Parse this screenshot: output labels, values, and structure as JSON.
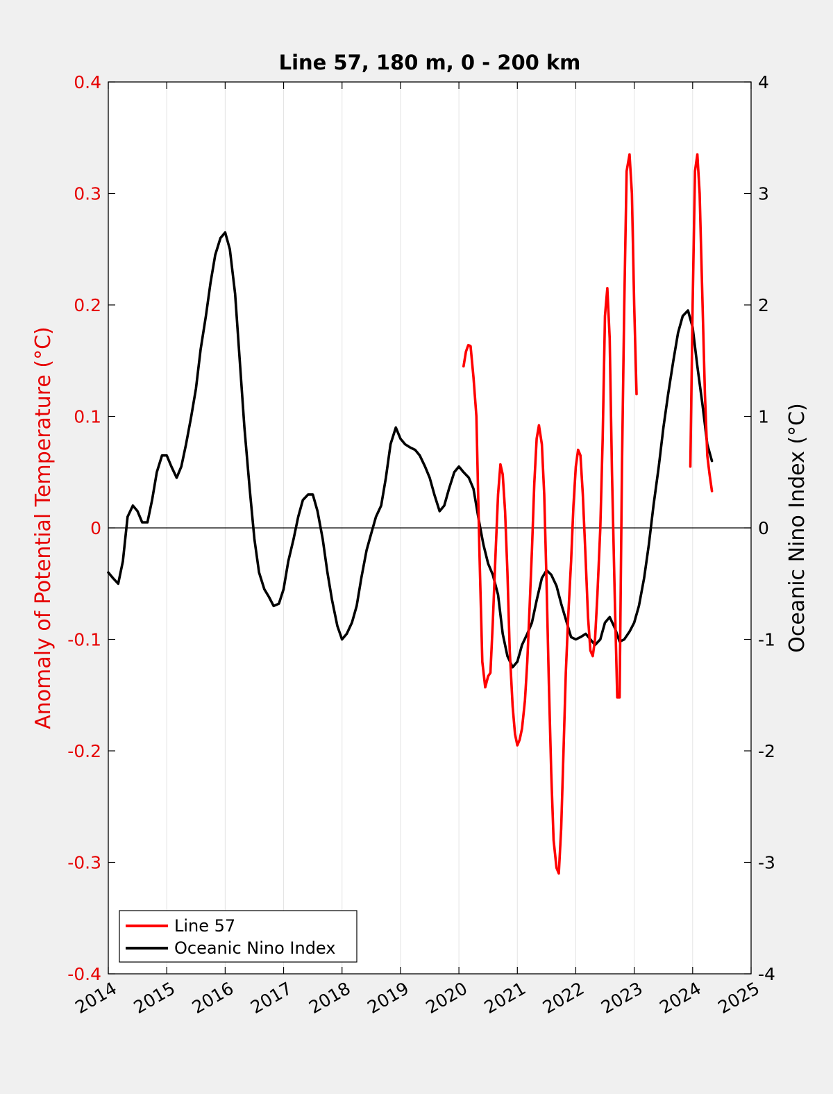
{
  "chart_data": {
    "type": "line",
    "title": "Line 57, 180 m, 0 - 200 km",
    "xlabel": "",
    "ylabel_left": "Anomaly of Potential Temperature (°C)",
    "ylabel_right": "Oceanic Nino Index (°C)",
    "xlim": [
      2014,
      2025
    ],
    "ylim_left": [
      -0.4,
      0.4
    ],
    "ylim_right": [
      -4,
      4
    ],
    "x_ticks": [
      "2014",
      "2015",
      "2016",
      "2017",
      "2018",
      "2019",
      "2020",
      "2021",
      "2022",
      "2023",
      "2024",
      "2025"
    ],
    "y_left_ticks": [
      "-0.4",
      "-0.3",
      "-0.2",
      "-0.1",
      "0",
      "0.1",
      "0.2",
      "0.3",
      "0.4"
    ],
    "y_right_ticks": [
      "-4",
      "-3",
      "-2",
      "-1",
      "0",
      "1",
      "2",
      "3",
      "4"
    ],
    "grid": "vertical",
    "zero_line": true,
    "legend_position": "bottom-left",
    "colors": {
      "left_axis": "#e60000",
      "right_axis": "#000000",
      "background": "#f0f0f0",
      "plot_area": "#ffffff"
    },
    "series": [
      {
        "name": "Line 57",
        "axis": "left",
        "color": "#ff0000",
        "x": [
          2020.08,
          2020.12,
          2020.16,
          2020.2,
          2020.25,
          2020.3,
          2020.35,
          2020.4,
          2020.45,
          2020.5,
          2020.54,
          2020.58,
          2020.63,
          2020.67,
          2020.71,
          2020.75,
          2020.79,
          2020.83,
          2020.87,
          2020.92,
          2020.96,
          2021.0,
          2021.04,
          2021.08,
          2021.13,
          2021.17,
          2021.21,
          2021.25,
          2021.29,
          2021.33,
          2021.37,
          2021.42,
          2021.46,
          2021.5,
          2021.54,
          2021.58,
          2021.62,
          2021.67,
          2021.71,
          2021.75,
          2021.79,
          2021.83,
          2021.87,
          2021.92,
          2021.96,
          2022.0,
          2022.04,
          2022.08,
          2022.12,
          2022.17,
          2022.21,
          2022.25,
          2022.29,
          2022.33,
          2022.37,
          2022.42,
          2022.46,
          2022.5,
          2022.54,
          2022.58,
          2022.62,
          2022.67,
          2022.71,
          2022.75,
          2022.79,
          2022.83,
          2022.87,
          2022.92,
          2022.96,
          2023.0,
          2023.04,
          null,
          2023.96,
          2024.0,
          2024.04,
          2024.08,
          2024.12,
          2024.17,
          2024.21,
          2024.25,
          2024.29,
          2024.33
        ],
        "values": [
          0.145,
          0.158,
          0.164,
          0.163,
          0.135,
          0.1,
          -0.02,
          -0.12,
          -0.143,
          -0.133,
          -0.13,
          -0.085,
          -0.02,
          0.03,
          0.057,
          0.048,
          0.015,
          -0.04,
          -0.11,
          -0.16,
          -0.185,
          -0.195,
          -0.19,
          -0.18,
          -0.155,
          -0.12,
          -0.07,
          -0.02,
          0.04,
          0.08,
          0.092,
          0.075,
          0.03,
          -0.05,
          -0.14,
          -0.22,
          -0.28,
          -0.305,
          -0.31,
          -0.27,
          -0.2,
          -0.13,
          -0.08,
          -0.03,
          0.02,
          0.055,
          0.07,
          0.065,
          0.03,
          -0.03,
          -0.08,
          -0.11,
          -0.115,
          -0.1,
          -0.06,
          0.0,
          0.08,
          0.19,
          0.215,
          0.17,
          0.05,
          -0.07,
          -0.152,
          -0.152,
          0.055,
          0.2,
          0.32,
          0.335,
          0.3,
          0.2,
          0.12,
          null,
          0.055,
          0.2,
          0.32,
          0.335,
          0.3,
          0.2,
          0.12,
          0.065,
          0.048,
          0.033
        ],
        "values_note": ""
      },
      {
        "name": "Oceanic Nino Index",
        "axis": "right",
        "color": "#000000",
        "x": [
          2014.0,
          2014.08,
          2014.17,
          2014.25,
          2014.33,
          2014.42,
          2014.5,
          2014.58,
          2014.67,
          2014.75,
          2014.83,
          2014.92,
          2015.0,
          2015.08,
          2015.17,
          2015.25,
          2015.33,
          2015.42,
          2015.5,
          2015.58,
          2015.67,
          2015.75,
          2015.83,
          2015.92,
          2016.0,
          2016.08,
          2016.17,
          2016.25,
          2016.33,
          2016.42,
          2016.5,
          2016.58,
          2016.67,
          2016.75,
          2016.83,
          2016.92,
          2017.0,
          2017.08,
          2017.17,
          2017.25,
          2017.33,
          2017.42,
          2017.5,
          2017.58,
          2017.67,
          2017.75,
          2017.83,
          2017.92,
          2018.0,
          2018.08,
          2018.17,
          2018.25,
          2018.33,
          2018.42,
          2018.5,
          2018.58,
          2018.67,
          2018.75,
          2018.83,
          2018.92,
          2019.0,
          2019.08,
          2019.17,
          2019.25,
          2019.33,
          2019.42,
          2019.5,
          2019.58,
          2019.67,
          2019.75,
          2019.83,
          2019.92,
          2020.0,
          2020.08,
          2020.17,
          2020.25,
          2020.33,
          2020.42,
          2020.5,
          2020.58,
          2020.67,
          2020.75,
          2020.83,
          2020.92,
          2021.0,
          2021.08,
          2021.17,
          2021.25,
          2021.33,
          2021.42,
          2021.5,
          2021.58,
          2021.67,
          2021.75,
          2021.83,
          2021.92,
          2022.0,
          2022.08,
          2022.17,
          2022.25,
          2022.33,
          2022.42,
          2022.5,
          2022.58,
          2022.67,
          2022.75,
          2022.83,
          2022.92,
          2023.0,
          2023.08,
          2023.17,
          2023.25,
          2023.33,
          2023.42,
          2023.5,
          2023.58,
          2023.67,
          2023.75,
          2023.83,
          2023.92,
          2024.0,
          2024.08,
          2024.17,
          2024.25,
          2024.33
        ],
        "values": [
          -0.4,
          -0.45,
          -0.5,
          -0.3,
          0.1,
          0.2,
          0.15,
          0.05,
          0.05,
          0.25,
          0.5,
          0.65,
          0.65,
          0.55,
          0.45,
          0.55,
          0.75,
          1.0,
          1.25,
          1.6,
          1.9,
          2.2,
          2.45,
          2.6,
          2.65,
          2.5,
          2.1,
          1.5,
          0.9,
          0.35,
          -0.1,
          -0.4,
          -0.55,
          -0.62,
          -0.7,
          -0.68,
          -0.55,
          -0.3,
          -0.1,
          0.1,
          0.25,
          0.3,
          0.3,
          0.15,
          -0.1,
          -0.4,
          -0.65,
          -0.88,
          -1.0,
          -0.95,
          -0.85,
          -0.7,
          -0.45,
          -0.2,
          -0.05,
          0.1,
          0.2,
          0.45,
          0.75,
          0.9,
          0.8,
          0.75,
          0.72,
          0.7,
          0.65,
          0.55,
          0.45,
          0.3,
          0.15,
          0.2,
          0.35,
          0.5,
          0.55,
          0.5,
          0.45,
          0.35,
          0.1,
          -0.15,
          -0.32,
          -0.42,
          -0.6,
          -0.95,
          -1.15,
          -1.25,
          -1.2,
          -1.05,
          -0.95,
          -0.85,
          -0.65,
          -0.45,
          -0.38,
          -0.42,
          -0.52,
          -0.68,
          -0.82,
          -0.98,
          -1.0,
          -0.98,
          -0.95,
          -1.0,
          -1.05,
          -1.0,
          -0.85,
          -0.8,
          -0.9,
          -1.02,
          -1.0,
          -0.93,
          -0.85,
          -0.7,
          -0.45,
          -0.15,
          0.2,
          0.55,
          0.9,
          1.2,
          1.5,
          1.75,
          1.9,
          1.95,
          1.8,
          1.45,
          1.1,
          0.75,
          0.6
        ]
      }
    ]
  }
}
